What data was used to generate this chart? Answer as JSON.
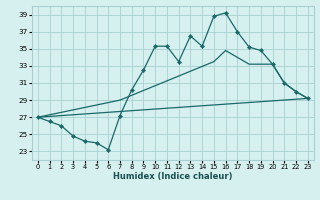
{
  "xlabel": "Humidex (Indice chaleur)",
  "bg_color": "#d6f0f0",
  "grid_color": "#a8d0d0",
  "line_color": "#1a6868",
  "xlim": [
    -0.5,
    23.5
  ],
  "ylim": [
    22.0,
    40.0
  ],
  "yticks": [
    23,
    25,
    27,
    29,
    31,
    33,
    35,
    37,
    39
  ],
  "xticks": [
    0,
    1,
    2,
    3,
    4,
    5,
    6,
    7,
    8,
    9,
    10,
    11,
    12,
    13,
    14,
    15,
    16,
    17,
    18,
    19,
    20,
    21,
    22,
    23
  ],
  "line1_x": [
    0,
    1,
    2,
    3,
    4,
    5,
    6,
    7,
    8,
    9,
    10,
    11,
    12,
    13,
    14,
    15,
    16,
    17,
    18,
    19,
    20,
    21,
    22,
    23
  ],
  "line1_y": [
    27.0,
    26.5,
    26.0,
    24.8,
    24.2,
    24.0,
    23.2,
    27.2,
    30.2,
    32.5,
    35.3,
    35.3,
    33.5,
    36.5,
    35.3,
    38.8,
    39.2,
    37.0,
    35.2,
    34.8,
    33.2,
    31.0,
    30.0,
    29.2
  ],
  "line2_x": [
    0,
    7,
    15,
    16,
    18,
    19,
    20,
    21,
    22,
    23
  ],
  "line2_y": [
    27.0,
    29.0,
    33.5,
    34.8,
    33.2,
    33.2,
    33.2,
    31.0,
    30.0,
    29.2
  ],
  "line3_x": [
    0,
    23
  ],
  "line3_y": [
    27.0,
    29.2
  ]
}
